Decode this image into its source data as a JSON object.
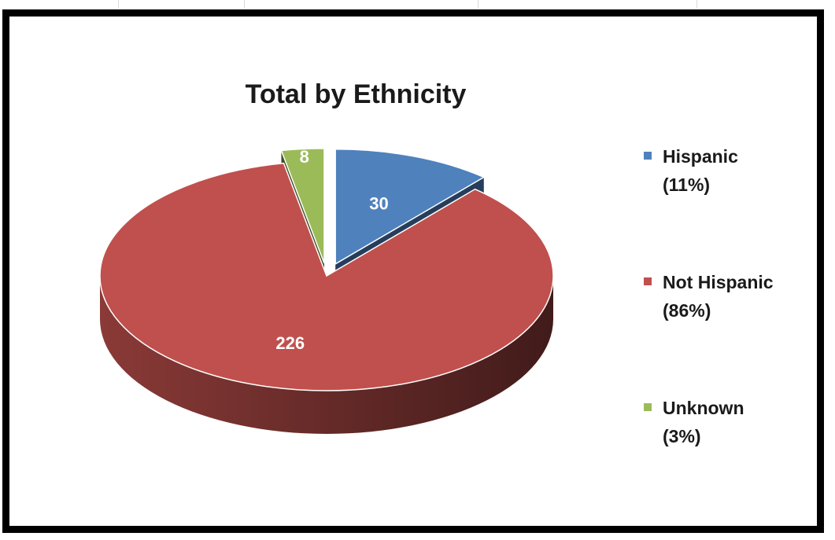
{
  "chart_data": {
    "type": "pie",
    "title": "Total by Ethnicity",
    "categories": [
      "Hispanic",
      "Not Hispanic",
      "Unknown"
    ],
    "values": [
      30,
      226,
      8
    ],
    "data_labels": [
      "30",
      "226",
      "8"
    ],
    "legend_percent": [
      "(11%)",
      "(86%)",
      "(3%)"
    ],
    "colors": [
      "#4f81bd",
      "#c0504d",
      "#9bbb59"
    ],
    "legend_position": "right",
    "exploded": true,
    "three_d": true
  }
}
